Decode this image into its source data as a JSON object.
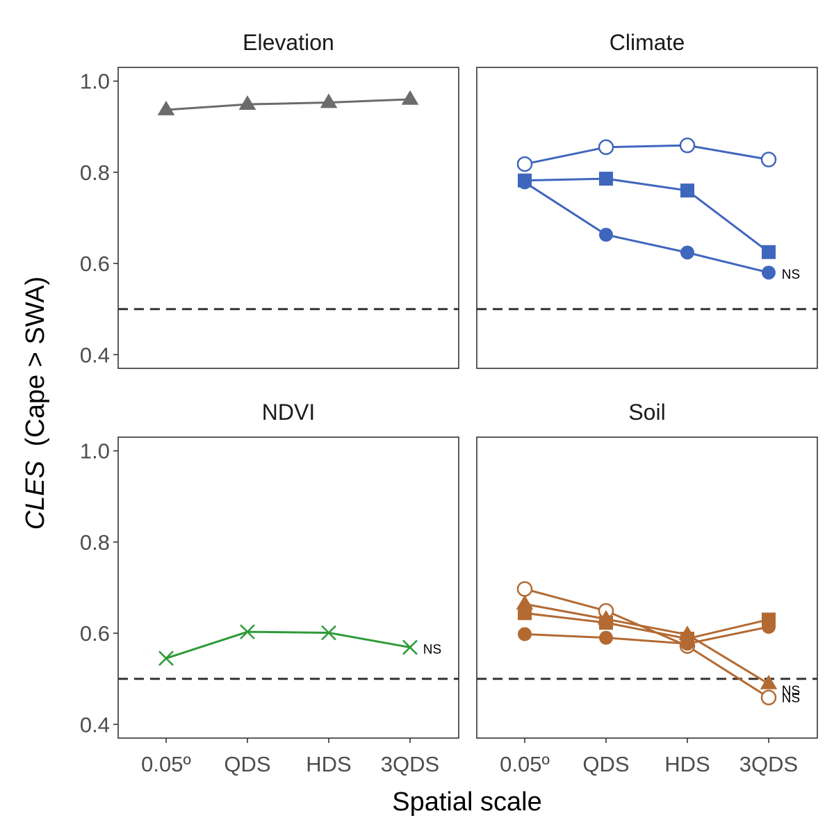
{
  "chart_data": {
    "type": "line",
    "facets": [
      {
        "title": "Elevation",
        "color": "#6b6b6b",
        "series": [
          {
            "shape": "triangle",
            "values": [
              0.937,
              0.949,
              0.953,
              0.96
            ]
          }
        ],
        "annotations": []
      },
      {
        "title": "Climate",
        "color": "#3f66bd",
        "series": [
          {
            "shape": "open-circle",
            "values": [
              0.818,
              0.855,
              0.859,
              0.828
            ]
          },
          {
            "shape": "square",
            "values": [
              0.782,
              0.786,
              0.76,
              0.625
            ]
          },
          {
            "shape": "circle",
            "values": [
              0.778,
              0.663,
              0.624,
              0.58
            ]
          }
        ],
        "annotations": [
          {
            "text": "NS",
            "value": 0.577
          }
        ]
      },
      {
        "title": "NDVI",
        "color": "#2e9a38",
        "series": [
          {
            "shape": "x",
            "values": [
              0.545,
              0.603,
              0.601,
              0.569
            ]
          }
        ],
        "annotations": [
          {
            "text": "NS",
            "value": 0.566
          }
        ]
      },
      {
        "title": "Soil",
        "color": "#b36a32",
        "series": [
          {
            "shape": "open-circle",
            "values": [
              0.697,
              0.649,
              0.572,
              0.459
            ]
          },
          {
            "shape": "triangle",
            "values": [
              0.664,
              0.631,
              0.597,
              0.489
            ]
          },
          {
            "shape": "square",
            "values": [
              0.644,
              0.623,
              0.588,
              0.63
            ]
          },
          {
            "shape": "circle",
            "values": [
              0.598,
              0.59,
              0.577,
              0.614
            ]
          }
        ],
        "annotations": [
          {
            "text": "NS",
            "value": 0.475
          },
          {
            "text": "NS",
            "value": 0.459
          }
        ]
      }
    ],
    "categories": [
      "0.05º",
      "QDS",
      "HDS",
      "3QDS"
    ],
    "yticks": [
      0.4,
      0.6,
      0.8,
      1.0
    ],
    "tick_labels": [
      "0.4",
      "0.6",
      "0.8",
      "1.0"
    ],
    "ylim": [
      0.37,
      1.03
    ],
    "reference_line": 0.5,
    "xlabel": "Spatial scale",
    "ylabel_italic": "CLES",
    "ylabel_rest": "(Cape > SWA)"
  }
}
